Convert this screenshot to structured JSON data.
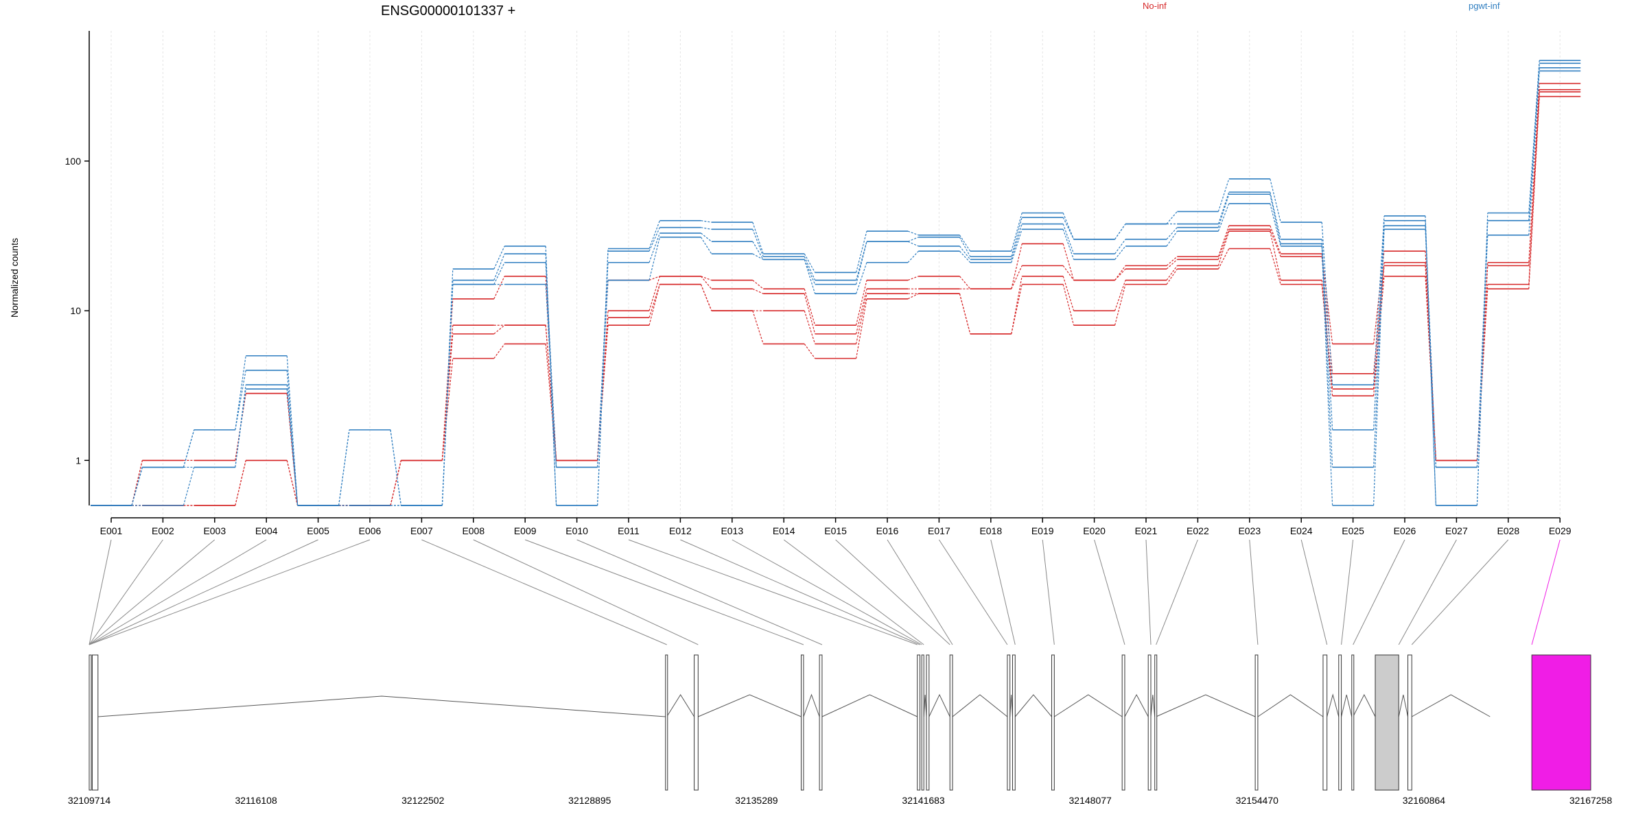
{
  "chart_data": {
    "type": "line",
    "title": "ENSG00000101337 +",
    "ylabel": "Normalized counts",
    "yscale": "log",
    "ylim": [
      0.5,
      600
    ],
    "yticks": [
      "1",
      "10",
      "100"
    ],
    "legend": [
      {
        "label": "No-inf",
        "color": "#d62728"
      },
      {
        "label": "pgwt-inf",
        "color": "#2f7ec0"
      }
    ],
    "categories": [
      "E001",
      "E002",
      "E003",
      "E004",
      "E005",
      "E006",
      "E007",
      "E008",
      "E009",
      "E010",
      "E011",
      "E012",
      "E013",
      "E014",
      "E015",
      "E016",
      "E017",
      "E018",
      "E019",
      "E020",
      "E021",
      "E022",
      "E023",
      "E024",
      "E025",
      "E026",
      "E027",
      "E028",
      "E029"
    ],
    "series": [
      {
        "group": "No-inf",
        "color": "#d62728",
        "values": [
          0.5,
          1.0,
          1.0,
          2.8,
          0.5,
          0.5,
          1.0,
          12.0,
          17.0,
          1.0,
          16.0,
          17.0,
          16.0,
          14.0,
          8.0,
          16.0,
          17.0,
          14.0,
          28.0,
          16.0,
          20.0,
          23.0,
          37.0,
          24.0,
          6.0,
          25.0,
          1.0,
          21.0,
          330
        ]
      },
      {
        "group": "No-inf",
        "color": "#d62728",
        "values": [
          0.5,
          1.0,
          1.0,
          2.8,
          0.5,
          0.5,
          1.0,
          8.0,
          8.0,
          1.0,
          10.0,
          17.0,
          14.0,
          13.0,
          7.0,
          14.0,
          14.0,
          14.0,
          20.0,
          16.0,
          19.0,
          22.0,
          35.0,
          23.0,
          3.8,
          21.0,
          1.0,
          20.0,
          300
        ]
      },
      {
        "group": "No-inf",
        "color": "#d62728",
        "values": [
          0.5,
          0.5,
          0.5,
          1.0,
          0.5,
          0.5,
          1.0,
          7.0,
          8.0,
          1.0,
          9.0,
          15.0,
          10.0,
          10.0,
          6.0,
          13.0,
          13.0,
          7.0,
          17.0,
          10.0,
          16.0,
          20.0,
          34.0,
          16.0,
          3.0,
          20.0,
          1.0,
          15.0,
          290
        ]
      },
      {
        "group": "No-inf",
        "color": "#d62728",
        "values": [
          0.5,
          0.5,
          0.5,
          1.0,
          0.5,
          0.5,
          1.0,
          4.8,
          6.0,
          1.0,
          8.0,
          15.0,
          10.0,
          6.0,
          4.8,
          12.0,
          13.0,
          7.0,
          15.0,
          8.0,
          15.0,
          19.0,
          26.0,
          15.0,
          2.7,
          17.0,
          1.0,
          14.0,
          270
        ]
      },
      {
        "group": "pgwt-inf",
        "color": "#2f7ec0",
        "values": [
          0.5,
          0.9,
          1.6,
          5.0,
          0.5,
          1.6,
          0.5,
          19.0,
          27.0,
          0.5,
          26.0,
          40.0,
          39.0,
          24.0,
          18.0,
          34.0,
          32.0,
          25.0,
          45.0,
          30.0,
          38.0,
          46.0,
          76.0,
          39.0,
          3.2,
          43.0,
          0.5,
          45.0,
          470
        ]
      },
      {
        "group": "pgwt-inf",
        "color": "#2f7ec0",
        "values": [
          0.5,
          0.9,
          1.6,
          4.0,
          0.5,
          1.6,
          0.5,
          16.0,
          24.0,
          0.5,
          25.0,
          36.0,
          35.0,
          23.0,
          16.0,
          29.0,
          31.0,
          23.0,
          42.0,
          30.0,
          38.0,
          38.0,
          62.0,
          30.0,
          1.6,
          40.0,
          0.5,
          40.0,
          450
        ]
      },
      {
        "group": "pgwt-inf",
        "color": "#2f7ec0",
        "values": [
          0.5,
          0.9,
          0.9,
          3.2,
          0.5,
          0.5,
          0.5,
          15.0,
          21.0,
          0.9,
          21.0,
          33.0,
          29.0,
          22.0,
          15.0,
          29.0,
          27.0,
          22.0,
          38.0,
          24.0,
          30.0,
          36.0,
          60.0,
          28.0,
          0.9,
          37.0,
          0.9,
          40.0,
          420
        ]
      },
      {
        "group": "pgwt-inf",
        "color": "#2f7ec0",
        "values": [
          0.5,
          0.5,
          0.9,
          3.0,
          0.5,
          0.5,
          0.5,
          15.0,
          15.0,
          0.9,
          16.0,
          31.0,
          24.0,
          22.0,
          13.0,
          21.0,
          25.0,
          21.0,
          35.0,
          22.0,
          27.0,
          34.0,
          52.0,
          27.0,
          0.5,
          35.0,
          0.9,
          32.0,
          400
        ]
      }
    ],
    "gene_model": {
      "coordinate_ticks": [
        "32109714",
        "32116108",
        "32122502",
        "32128895",
        "32135289",
        "32141683",
        "32148077",
        "32154470",
        "32160864",
        "32167258"
      ],
      "range": [
        32109714,
        32167258
      ],
      "highlighted_exon": "E029",
      "highlight_color": "#f01de6",
      "exon_fill": "#ffffff",
      "shaded_exon_fill": "#cccccc",
      "exon_block_starts": [
        32109714,
        32109830,
        32131800,
        32132900,
        32137000,
        32137700,
        32141450,
        32141620,
        32141800,
        32142700,
        32144900,
        32145100,
        32146600,
        32149300,
        32150300,
        32150550,
        32154400,
        32157000,
        32157600,
        32158100,
        32159000,
        32160250,
        32163400
      ],
      "exon_block_ends": [
        32109760,
        32110050,
        32131850,
        32133050,
        32137090,
        32137800,
        32141550,
        32141700,
        32141900,
        32142800,
        32145000,
        32145200,
        32146700,
        32149400,
        32150400,
        32150600,
        32154500,
        32157150,
        32157700,
        32158150,
        32159900,
        32160400,
        32167258
      ],
      "shaded_block_index": 20,
      "exon_anchor_positions": [
        32109714,
        32109714,
        32109714,
        32109714,
        32109714,
        32109714,
        32131850,
        32133050,
        32137090,
        32137800,
        32141450,
        32141550,
        32141620,
        32141700,
        32142700,
        32142800,
        32144900,
        32145200,
        32146700,
        32149400,
        32150400,
        32150600,
        32154500,
        32157150,
        32157700,
        32158150,
        32159900,
        32160400,
        32165000
      ]
    }
  }
}
